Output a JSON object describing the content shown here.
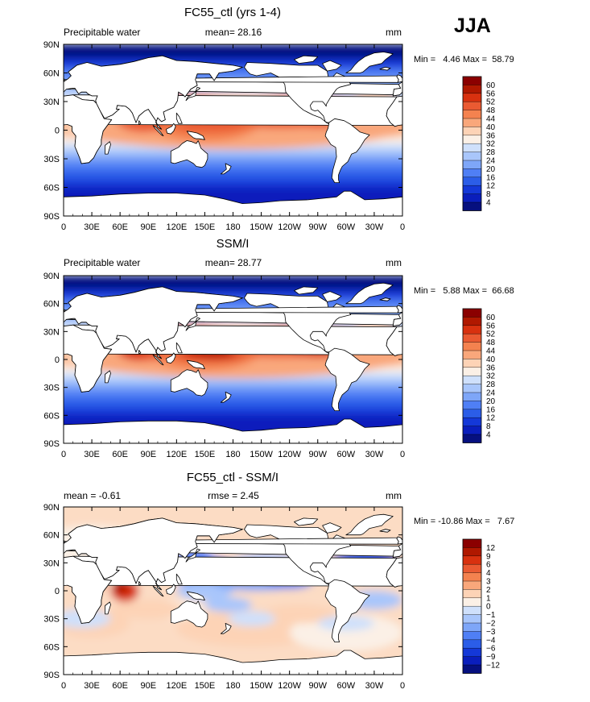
{
  "figure": {
    "season_label": "JJA"
  },
  "chart_data": [
    {
      "type": "heatmap",
      "title": "FC55_ctl (yrs 1-4)",
      "left_label": "Precipitable water",
      "center_label": "mean=  28.16",
      "unit": "mm",
      "stats_label": "Min =   4.46 Max =  58.79",
      "x_ticks": [
        "0",
        "30E",
        "60E",
        "90E",
        "120E",
        "150E",
        "180",
        "150W",
        "120W",
        "90W",
        "60W",
        "30W",
        "0"
      ],
      "y_ticks": [
        "90N",
        "60N",
        "30N",
        "0",
        "30S",
        "60S",
        "90S"
      ],
      "colorbar_levels": [
        "60",
        "56",
        "52",
        "48",
        "44",
        "40",
        "36",
        "32",
        "28",
        "24",
        "20",
        "16",
        "12",
        "8",
        "4"
      ],
      "colorbar_colors": [
        "#8b0000",
        "#b01800",
        "#d8310f",
        "#ea5a32",
        "#f4824f",
        "#f9a77b",
        "#fdd3b6",
        "#fbf0e6",
        "#cfe0fb",
        "#a9c6fb",
        "#7ea6f8",
        "#4f7ff5",
        "#2b5de8",
        "#1438d8",
        "#0a1ebc",
        "#06107f"
      ],
      "field": "precipitable_water_model"
    },
    {
      "type": "heatmap",
      "title": "SSM/I",
      "left_label": "Precipitable water",
      "center_label": "mean=  28.77",
      "unit": "mm",
      "stats_label": "Min =   5.88 Max =  66.68",
      "x_ticks": [
        "0",
        "30E",
        "60E",
        "90E",
        "120E",
        "150E",
        "180",
        "150W",
        "120W",
        "90W",
        "60W",
        "30W",
        "0"
      ],
      "y_ticks": [
        "90N",
        "60N",
        "30N",
        "0",
        "30S",
        "60S",
        "90S"
      ],
      "colorbar_levels": [
        "60",
        "56",
        "52",
        "48",
        "44",
        "40",
        "36",
        "32",
        "28",
        "24",
        "20",
        "16",
        "12",
        "8",
        "4"
      ],
      "colorbar_colors": [
        "#8b0000",
        "#b01800",
        "#d8310f",
        "#ea5a32",
        "#f4824f",
        "#f9a77b",
        "#fdd3b6",
        "#fbf0e6",
        "#cfe0fb",
        "#a9c6fb",
        "#7ea6f8",
        "#4f7ff5",
        "#2b5de8",
        "#1438d8",
        "#0a1ebc",
        "#06107f"
      ],
      "field": "precipitable_water_obs"
    },
    {
      "type": "heatmap",
      "title": "FC55_ctl - SSM/I",
      "left_label": "mean =  -0.61",
      "center_label": "rmse =   2.45",
      "unit": "mm",
      "stats_label": "Min = -10.86 Max =   7.67",
      "x_ticks": [
        "0",
        "30E",
        "60E",
        "90E",
        "120E",
        "150E",
        "180",
        "150W",
        "120W",
        "90W",
        "60W",
        "30W",
        "0"
      ],
      "y_ticks": [
        "90N",
        "60N",
        "30N",
        "0",
        "30S",
        "60S",
        "90S"
      ],
      "colorbar_levels": [
        "12",
        "9",
        "6",
        "4",
        "3",
        "2",
        "1",
        "0",
        "−1",
        "−2",
        "−3",
        "−4",
        "−6",
        "−9",
        "−12"
      ],
      "colorbar_colors": [
        "#8b0000",
        "#b01800",
        "#d8310f",
        "#ea5a32",
        "#f4824f",
        "#f9a77b",
        "#fdd3b6",
        "#fbf0e6",
        "#cfe0fb",
        "#a9c6fb",
        "#7ea6f8",
        "#4f7ff5",
        "#2b5de8",
        "#1438d8",
        "#0a1ebc",
        "#06107f"
      ],
      "field": "difference"
    }
  ]
}
